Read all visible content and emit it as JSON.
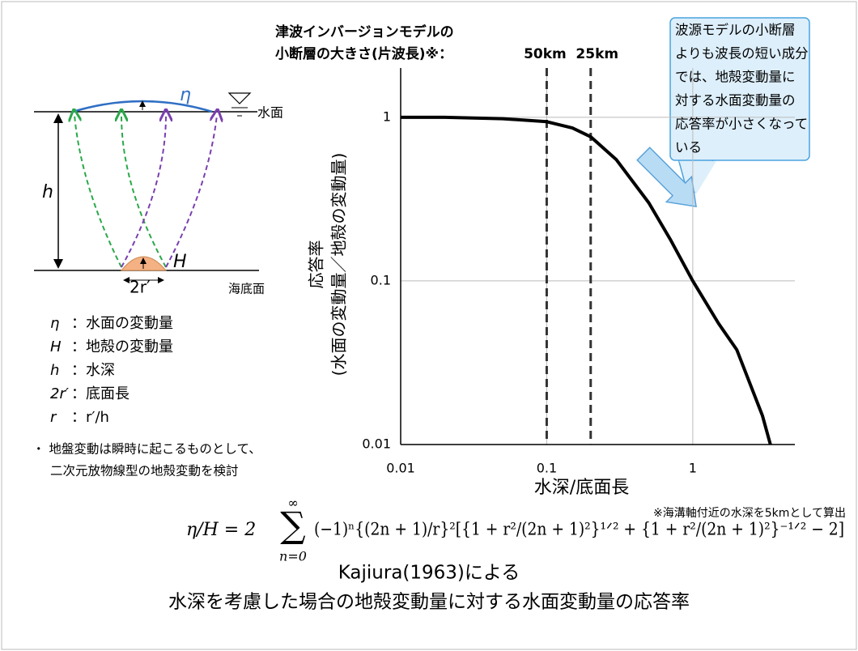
{
  "chart_data": {
    "type": "line",
    "title": [
      "津波インバージョンモデルの",
      "小断層の大きさ(片波長)※："
    ],
    "vlines": [
      {
        "value": 0.1,
        "label": "50km"
      },
      {
        "value": 0.2,
        "label": "25km"
      }
    ],
    "x": [
      0.01,
      0.02,
      0.05,
      0.1,
      0.15,
      0.2,
      0.3,
      0.5,
      0.7,
      1,
      1.5,
      2,
      3,
      3.4
    ],
    "values": [
      1,
      1,
      0.98,
      0.94,
      0.86,
      0.76,
      0.55,
      0.3,
      0.18,
      0.1,
      0.055,
      0.038,
      0.015,
      0.01
    ],
    "color": "#000000",
    "xlim": [
      0.01,
      5
    ],
    "ylim": [
      0.01,
      2
    ],
    "xticks": [
      0.01,
      0.1,
      1
    ],
    "yticks": [
      0.01,
      0.1,
      1
    ],
    "xlog": true,
    "ylog": true,
    "grid": true,
    "xlabel": "水深/底面長",
    "ylabel": [
      "応答率",
      "(水面の変動量／地殻の変動量)"
    ],
    "callout": [
      "波源モデルの小断層",
      "よりも波長の短い成分",
      "では、地殻変動量に",
      "対する水面変動量の",
      "応答率が小さくなって",
      "いる"
    ],
    "note": "※海溝軸付近の水深を5kmとして算出"
  },
  "diagram": {
    "eta": "η",
    "H": "H",
    "h": "h",
    "width": "2r′",
    "surface": "水面",
    "seafloor": "海底面"
  },
  "legend": [
    {
      "symbol": "η",
      "text": "：水面の変動量"
    },
    {
      "symbol": "H",
      "text": "：地殻の変動量"
    },
    {
      "symbol": "h",
      "text": "：水深"
    },
    {
      "symbol": "2r′",
      "text": "：底面長"
    },
    {
      "symbol": "r",
      "text": "：r′/h"
    }
  ],
  "bullet": [
    "・ 地盤変動は瞬時に起こるものとして、",
    "二次元放物線型の地殻変動を検討"
  ],
  "formula": {
    "lhs": "η/H = 2",
    "sum": "∑",
    "upper": "∞",
    "lower": "n=0",
    "body": "(−1)ⁿ{(2n + 1)/r}²[{1 + r²/(2n + 1)²}¹ᐟ² + {1 + r²/(2n + 1)²}⁻¹ᐟ² − 2]"
  },
  "caption": [
    "Kajiura(1963)による",
    "水深を考慮した場合の地殻変動量に対する水面変動量の応答率"
  ]
}
